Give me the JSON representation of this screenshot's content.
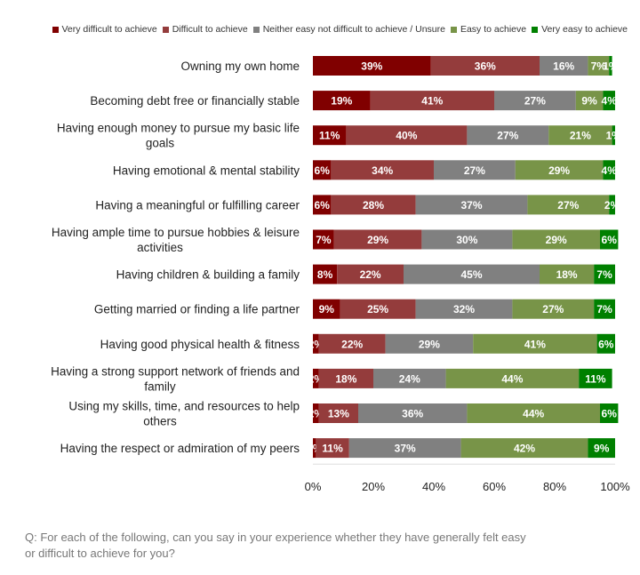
{
  "chart_data": {
    "type": "bar",
    "orientation": "horizontal",
    "stacked": true,
    "title": "",
    "xlabel": "",
    "ylabel": "",
    "xlim": [
      0,
      100
    ],
    "x_ticks": [
      "0%",
      "20%",
      "40%",
      "60%",
      "80%",
      "100%"
    ],
    "legend_position": "top-right",
    "categories": [
      "Owning my own home",
      "Becoming debt free or financially stable",
      "Having enough money to pursue my basic life goals",
      "Having emotional & mental stability",
      "Having a meaningful or fulfilling career",
      "Having ample time to pursue hobbies & leisure activities",
      "Having children & building a family",
      "Getting married or finding a life partner",
      "Having good physical health & fitness",
      "Having a strong support network of friends and family",
      "Using my skills, time, and resources to help others",
      "Having the respect or admiration of my peers"
    ],
    "category_lines": [
      [
        "Owning my own home"
      ],
      [
        "Becoming debt free or financially stable"
      ],
      [
        "Having enough money to pursue my basic life",
        "goals"
      ],
      [
        "Having emotional & mental stability"
      ],
      [
        "Having a meaningful or fulfilling career"
      ],
      [
        "Having ample time to pursue hobbies & leisure",
        "activities"
      ],
      [
        "Having children & building a family"
      ],
      [
        "Getting married or finding a life partner"
      ],
      [
        "Having good physical health & fitness"
      ],
      [
        "Having a strong support network of friends and",
        "family"
      ],
      [
        "Using my skills, time, and resources to help",
        "others"
      ],
      [
        "Having the respect or admiration of my peers"
      ]
    ],
    "series": [
      {
        "name": "Very difficult to achieve",
        "color": "#800000",
        "values": [
          39,
          19,
          11,
          6,
          6,
          7,
          8,
          9,
          2,
          2,
          2,
          1
        ]
      },
      {
        "name": "Difficult to achieve",
        "color": "#943c3c",
        "values": [
          36,
          41,
          40,
          34,
          28,
          29,
          22,
          25,
          22,
          18,
          13,
          11
        ]
      },
      {
        "name": "Neither easy not difficult to achieve / Unsure",
        "color": "#808080",
        "values": [
          16,
          27,
          27,
          27,
          37,
          30,
          45,
          32,
          29,
          24,
          36,
          37
        ]
      },
      {
        "name": "Easy to achieve",
        "color": "#789448",
        "values": [
          7,
          9,
          21,
          29,
          27,
          29,
          18,
          27,
          41,
          44,
          44,
          42
        ]
      },
      {
        "name": "Very easy to achieve",
        "color": "#008000",
        "values": [
          1,
          4,
          1,
          4,
          2,
          6,
          7,
          7,
          6,
          11,
          6,
          9
        ]
      }
    ]
  },
  "footnote": {
    "line1": "Q: For each of the following, can you say in your experience whether they have generally felt easy",
    "line2": "or difficult to achieve for you?"
  }
}
